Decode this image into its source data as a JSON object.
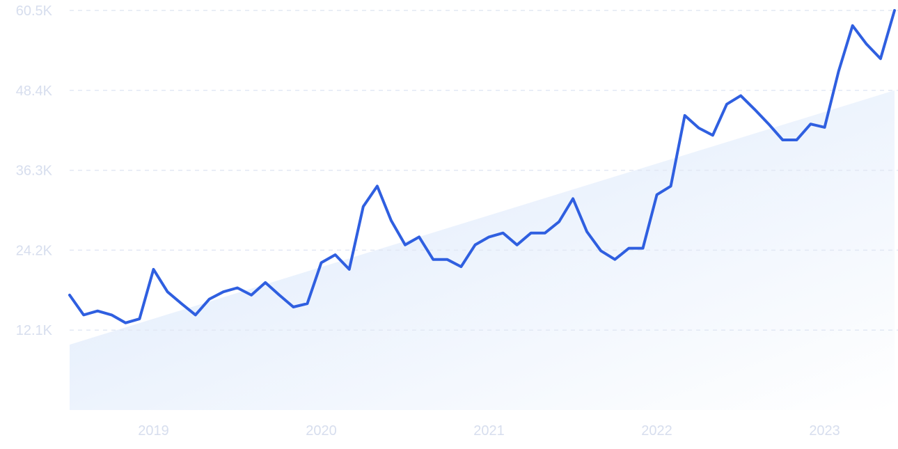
{
  "chart_data": {
    "type": "line",
    "title": "",
    "xlabel": "",
    "ylabel": "",
    "grid": true,
    "ylim": [
      0,
      60500
    ],
    "xlim": [
      "2018-07",
      "2023-06"
    ],
    "y_ticks": [
      {
        "value": 12100,
        "label": "12.1K"
      },
      {
        "value": 24200,
        "label": "24.2K"
      },
      {
        "value": 36300,
        "label": "36.3K"
      },
      {
        "value": 48400,
        "label": "48.4K"
      },
      {
        "value": 60500,
        "label": "60.5K"
      }
    ],
    "x_ticks": [
      {
        "value": "2019-01",
        "label": "2019"
      },
      {
        "value": "2020-01",
        "label": "2020"
      },
      {
        "value": "2021-01",
        "label": "2021"
      },
      {
        "value": "2022-01",
        "label": "2022"
      },
      {
        "value": "2023-01",
        "label": "2023"
      }
    ],
    "trend": {
      "start": [
        "2018-07",
        9900
      ],
      "end": [
        "2023-06",
        48400
      ]
    },
    "series": [
      {
        "points": [
          [
            "2018-07",
            17400
          ],
          [
            "2018-08",
            14400
          ],
          [
            "2018-09",
            15000
          ],
          [
            "2018-10",
            14400
          ],
          [
            "2018-11",
            13200
          ],
          [
            "2018-12",
            13800
          ],
          [
            "2019-01",
            21300
          ],
          [
            "2019-02",
            17900
          ],
          [
            "2019-03",
            16100
          ],
          [
            "2019-04",
            14400
          ],
          [
            "2019-05",
            16800
          ],
          [
            "2019-06",
            17900
          ],
          [
            "2019-07",
            18500
          ],
          [
            "2019-08",
            17400
          ],
          [
            "2019-09",
            19300
          ],
          [
            "2019-10",
            17400
          ],
          [
            "2019-11",
            15600
          ],
          [
            "2019-12",
            16100
          ],
          [
            "2020-01",
            22300
          ],
          [
            "2020-02",
            23500
          ],
          [
            "2020-03",
            21300
          ],
          [
            "2020-04",
            30800
          ],
          [
            "2020-05",
            33900
          ],
          [
            "2020-06",
            28700
          ],
          [
            "2020-07",
            25000
          ],
          [
            "2020-08",
            26200
          ],
          [
            "2020-09",
            22800
          ],
          [
            "2020-10",
            22800
          ],
          [
            "2020-11",
            21700
          ],
          [
            "2020-12",
            25000
          ],
          [
            "2021-01",
            26200
          ],
          [
            "2021-02",
            26800
          ],
          [
            "2021-03",
            25000
          ],
          [
            "2021-04",
            26800
          ],
          [
            "2021-05",
            26800
          ],
          [
            "2021-06",
            28500
          ],
          [
            "2021-07",
            32000
          ],
          [
            "2021-08",
            27000
          ],
          [
            "2021-09",
            24100
          ],
          [
            "2021-10",
            22800
          ],
          [
            "2021-11",
            24500
          ],
          [
            "2021-12",
            24500
          ],
          [
            "2022-01",
            32600
          ],
          [
            "2022-02",
            33900
          ],
          [
            "2022-03",
            44600
          ],
          [
            "2022-04",
            42700
          ],
          [
            "2022-05",
            41600
          ],
          [
            "2022-06",
            46300
          ],
          [
            "2022-07",
            47600
          ],
          [
            "2022-08",
            45500
          ],
          [
            "2022-09",
            43300
          ],
          [
            "2022-10",
            40900
          ],
          [
            "2022-11",
            40900
          ],
          [
            "2022-12",
            43300
          ],
          [
            "2023-01",
            42800
          ],
          [
            "2023-02",
            51300
          ],
          [
            "2023-03",
            58200
          ],
          [
            "2023-04",
            55400
          ],
          [
            "2023-05",
            53200
          ],
          [
            "2023-06",
            60500
          ]
        ]
      }
    ]
  },
  "style": {
    "line_color": "#2f5fe0",
    "grid_color": "#e2e8f4",
    "tick_color": "#d7deee",
    "area_color_start": "#dbe8fb",
    "area_color_end": "#ffffff"
  }
}
